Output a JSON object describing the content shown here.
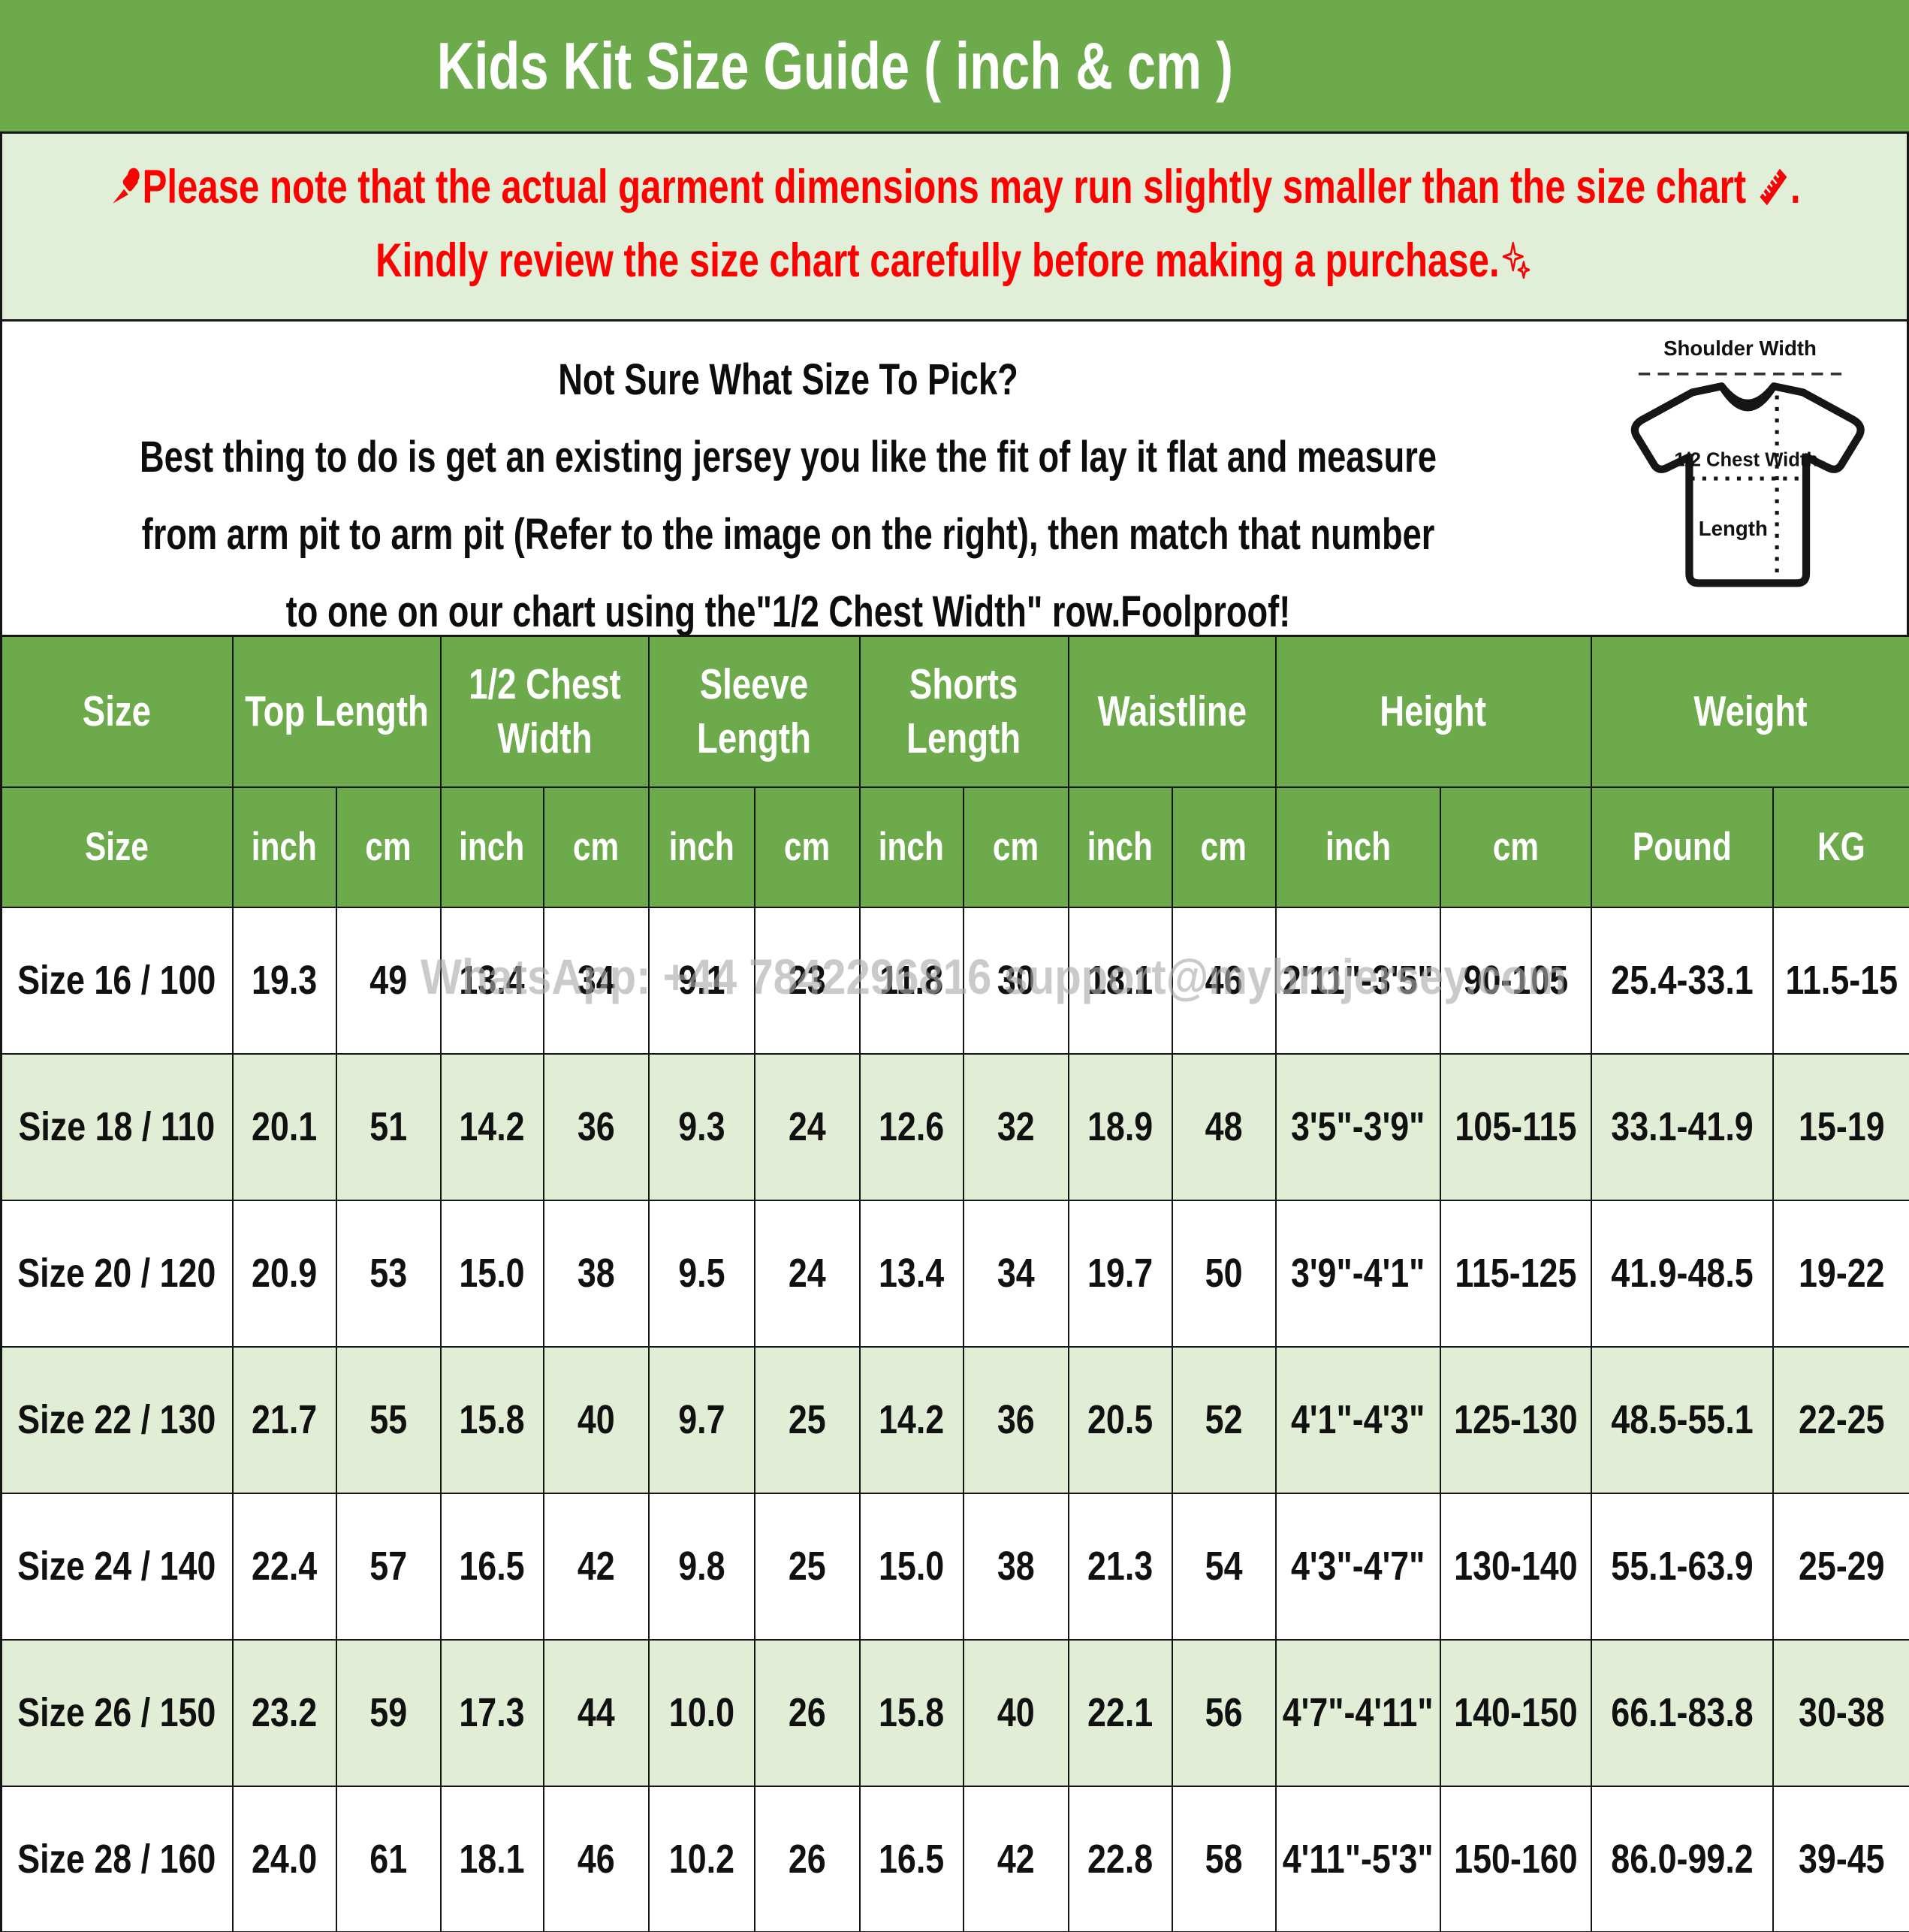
{
  "title": "Kids Kit Size Guide ( inch & cm )",
  "notice": {
    "line1_text": "Please note that the actual garment dimensions may run slightly smaller than the size chart",
    "line1_period": ".",
    "line2_text": "Kindly review the size chart carefully before making a purchase.",
    "text_color": "#ff0000"
  },
  "sizing_help": {
    "line1": "Not Sure What Size To Pick?",
    "line2": "Best thing to do is get an existing jersey you like the fit of lay it flat and measure",
    "line3": "from arm pit to arm pit (Refer to the image on the right), then match that number",
    "line4": "to one on our chart using the\"1/2 Chest Width\" row.Foolproof!"
  },
  "diagram": {
    "shoulder_label": "Shoulder Width",
    "chest_label": "1/2 Chest Width",
    "length_label": "Length"
  },
  "watermark": "WhatsApp: +44 7842296816  support@mybrojersey.com",
  "colors": {
    "header_green": "#6caa4b",
    "light_green_bg": "#e2efd8",
    "alt_row_green": "#e1eed5",
    "notice_red": "#ff0000",
    "watermark_gray": "#ababab",
    "border_black": "#161616"
  },
  "table": {
    "header_groups": [
      {
        "label": "Size",
        "span": 1
      },
      {
        "label": "Top Length",
        "span": 2
      },
      {
        "label": "1/2 Chest Width",
        "span": 2
      },
      {
        "label": "Sleeve Length",
        "span": 2
      },
      {
        "label": "Shorts Length",
        "span": 2
      },
      {
        "label": "Waistline",
        "span": 2
      },
      {
        "label": "Height",
        "span": 2
      },
      {
        "label": "Weight",
        "span": 2
      }
    ],
    "header_units": [
      "Size",
      "inch",
      "cm",
      "inch",
      "cm",
      "inch",
      "cm",
      "inch",
      "cm",
      "inch",
      "cm",
      "inch",
      "cm",
      "Pound",
      "KG"
    ],
    "rows": [
      {
        "cells": [
          "Size 16 / 100",
          "19.3",
          "49",
          "13.4",
          "34",
          "9.1",
          "23",
          "11.8",
          "30",
          "18.1",
          "46",
          "2'11\"-3'5\"",
          "90-105",
          "25.4-33.1",
          "11.5-15"
        ]
      },
      {
        "cells": [
          "Size 18 / 110",
          "20.1",
          "51",
          "14.2",
          "36",
          "9.3",
          "24",
          "12.6",
          "32",
          "18.9",
          "48",
          "3'5\"-3'9\"",
          "105-115",
          "33.1-41.9",
          "15-19"
        ]
      },
      {
        "cells": [
          "Size 20 / 120",
          "20.9",
          "53",
          "15.0",
          "38",
          "9.5",
          "24",
          "13.4",
          "34",
          "19.7",
          "50",
          "3'9\"-4'1\"",
          "115-125",
          "41.9-48.5",
          "19-22"
        ]
      },
      {
        "cells": [
          "Size 22 / 130",
          "21.7",
          "55",
          "15.8",
          "40",
          "9.7",
          "25",
          "14.2",
          "36",
          "20.5",
          "52",
          "4'1\"-4'3\"",
          "125-130",
          "48.5-55.1",
          "22-25"
        ]
      },
      {
        "cells": [
          "Size 24 / 140",
          "22.4",
          "57",
          "16.5",
          "42",
          "9.8",
          "25",
          "15.0",
          "38",
          "21.3",
          "54",
          "4'3\"-4'7\"",
          "130-140",
          "55.1-63.9",
          "25-29"
        ]
      },
      {
        "cells": [
          "Size 26 / 150",
          "23.2",
          "59",
          "17.3",
          "44",
          "10.0",
          "26",
          "15.8",
          "40",
          "22.1",
          "56",
          "4'7\"-4'11\"",
          "140-150",
          "66.1-83.8",
          "30-38"
        ]
      },
      {
        "cells": [
          "Size 28 / 160",
          "24.0",
          "61",
          "18.1",
          "46",
          "10.2",
          "26",
          "16.5",
          "42",
          "22.8",
          "58",
          "4'11\"-5'3\"",
          "150-160",
          "86.0-99.2",
          "39-45"
        ]
      }
    ]
  }
}
